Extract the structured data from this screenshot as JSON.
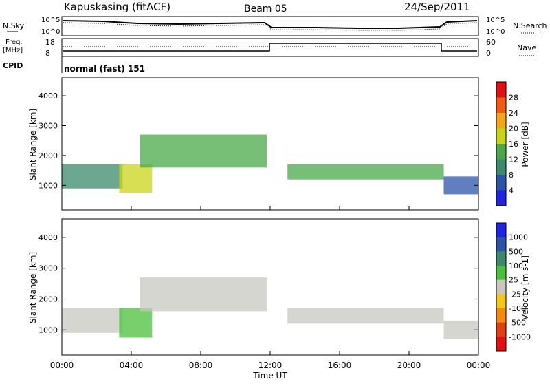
{
  "header": {
    "station": "Kapuskasing (fitACF)",
    "beam": "Beam 05",
    "date": "24/Sep/2011"
  },
  "noise_panel": {
    "left_label": "N.Sky",
    "right_label": "N.Search",
    "ticks_left": [
      "10^5",
      "10^0"
    ],
    "ticks_right": [
      "10^5",
      "10^0"
    ]
  },
  "freq_panel": {
    "left_label_1": "Freq.",
    "left_label_2": "[MHz]",
    "right_label": "Nave",
    "ticks_left": [
      "18",
      "8"
    ],
    "ticks_right": [
      "60",
      "0"
    ],
    "cpid_label": "CPID",
    "cpid_value": "normal (fast) 151"
  },
  "chart_data": [
    {
      "type": "heatmap",
      "name": "power",
      "ylabel": "Slant Range [km]",
      "ylim": [
        180,
        4600
      ],
      "yticks": [
        "1000",
        "2000",
        "3000",
        "4000"
      ],
      "xlim": [
        "00:00",
        "24:00"
      ],
      "colorbar_label": "Power [dB]",
      "colorbar_ticks": [
        "4",
        "8",
        "12",
        "16",
        "20",
        "24",
        "28"
      ],
      "colors": [
        "#1f25e0",
        "#2b54a8",
        "#3b8a6e",
        "#4aa84a",
        "#c9d51a",
        "#f2a71a",
        "#f05a14",
        "#e01010"
      ],
      "bands": [
        {
          "t0": 0.0,
          "t1": 3.5,
          "r0": 900,
          "r1": 1700,
          "level": 2
        },
        {
          "t0": 3.3,
          "t1": 5.2,
          "r0": 750,
          "r1": 1700,
          "level": 4
        },
        {
          "t0": 4.5,
          "t1": 11.8,
          "r0": 1600,
          "r1": 2700,
          "level": 3
        },
        {
          "t0": 13.0,
          "t1": 22.0,
          "r0": 1200,
          "r1": 1700,
          "level": 3
        },
        {
          "t0": 22.0,
          "t1": 24.0,
          "r0": 700,
          "r1": 1300,
          "level": 1
        }
      ]
    },
    {
      "type": "heatmap",
      "name": "velocity",
      "ylabel": "Slant Range [km]",
      "ylim": [
        180,
        4600
      ],
      "yticks": [
        "1000",
        "2000",
        "3000",
        "4000"
      ],
      "xlabel": "Time UT",
      "xticks": [
        "00:00",
        "04:00",
        "08:00",
        "12:00",
        "16:00",
        "20:00",
        "00:00"
      ],
      "xlim": [
        "00:00",
        "24:00"
      ],
      "colorbar_label": "Velocity [m s-1]",
      "colorbar_ticks": [
        "1000",
        "500",
        "100",
        "25",
        "-25",
        "-100",
        "-500",
        "-1000"
      ],
      "colors": [
        "#1f25e0",
        "#2b54a8",
        "#3b8a6e",
        "#4ac03a",
        "#c8c8c0",
        "#f2c81a",
        "#f28a14",
        "#e04010",
        "#e01010"
      ],
      "bands": [
        {
          "t0": 0.0,
          "t1": 3.5,
          "r0": 900,
          "r1": 1700,
          "level": 4
        },
        {
          "t0": 3.3,
          "t1": 5.2,
          "r0": 750,
          "r1": 1700,
          "level": 3
        },
        {
          "t0": 4.5,
          "t1": 11.8,
          "r0": 1600,
          "r1": 2700,
          "level": 4
        },
        {
          "t0": 13.0,
          "t1": 22.0,
          "r0": 1200,
          "r1": 1700,
          "level": 4
        },
        {
          "t0": 22.0,
          "t1": 24.0,
          "r0": 700,
          "r1": 1300,
          "level": 4
        }
      ]
    }
  ]
}
